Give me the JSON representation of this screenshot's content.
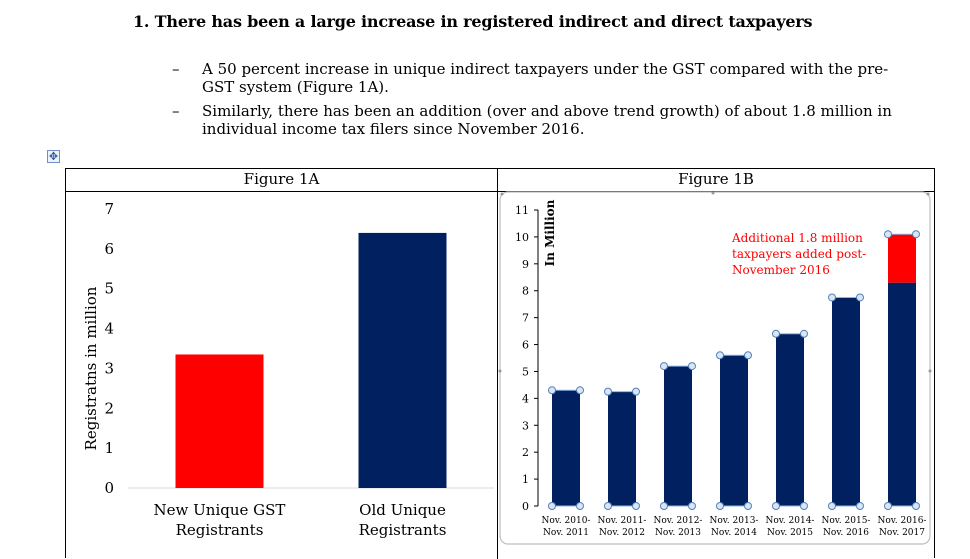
{
  "heading": "1. There has been a large increase in registered indirect and direct taxpayers",
  "bullets": [
    {
      "dash": "–",
      "text": "A 50 percent increase in unique indirect taxpayers under the GST compared with the pre-GST system (Figure 1A)."
    },
    {
      "dash": "–",
      "text": "Similarly, there has been an addition (over and above trend growth) of about 1.8 million in individual income tax filers since November 2016."
    }
  ],
  "figure_a": {
    "title": "Figure 1A"
  },
  "figure_b": {
    "title": "Figure 1B"
  },
  "colors": {
    "red": "#ff0000",
    "navy": "#002060"
  },
  "chart_data": [
    {
      "type": "bar",
      "title": "",
      "ylabel": "Registratns in million",
      "xlabel": "",
      "ylim": [
        0,
        7
      ],
      "yticks": [
        "0",
        "1",
        "2",
        "3",
        "4",
        "5",
        "6",
        "7"
      ],
      "categories": [
        [
          "New Unique GST",
          "Registrants"
        ],
        [
          "Old Unique",
          "Registrants"
        ]
      ],
      "values": [
        3.35,
        6.4
      ],
      "bar_colors": [
        "#ff0000",
        "#002060"
      ],
      "grid": false,
      "legend": "none"
    },
    {
      "type": "bar",
      "title": "",
      "ylabel": "In Million",
      "xlabel": "",
      "ylim": [
        0,
        11
      ],
      "yticks": [
        "0",
        "1",
        "2",
        "3",
        "4",
        "5",
        "6",
        "7",
        "8",
        "9",
        "10",
        "11"
      ],
      "categories": [
        [
          "Nov. 2010-",
          "Nov. 2011"
        ],
        [
          "Nov. 2011-",
          "Nov. 2012"
        ],
        [
          "Nov. 2012-",
          "Nov. 2013"
        ],
        [
          "Nov. 2013-",
          "Nov. 2014"
        ],
        [
          "Nov. 2014-",
          "Nov. 2015"
        ],
        [
          "Nov. 2015-",
          "Nov. 2016"
        ],
        [
          "Nov. 2016-",
          "Nov. 2017"
        ]
      ],
      "stacked": true,
      "series": [
        {
          "values": [
            4.3,
            4.25,
            5.2,
            5.6,
            6.4,
            7.75,
            8.3
          ],
          "color": "#002060"
        },
        {
          "values": [
            0,
            0,
            0,
            0,
            0,
            0,
            1.8
          ],
          "color": "#ff0000"
        }
      ],
      "annotation": [
        "Additional 1.8 million",
        "taxpayers added post-",
        "November 2016"
      ],
      "annotation_color": "#ff0000",
      "grid": false,
      "legend": "none"
    }
  ]
}
